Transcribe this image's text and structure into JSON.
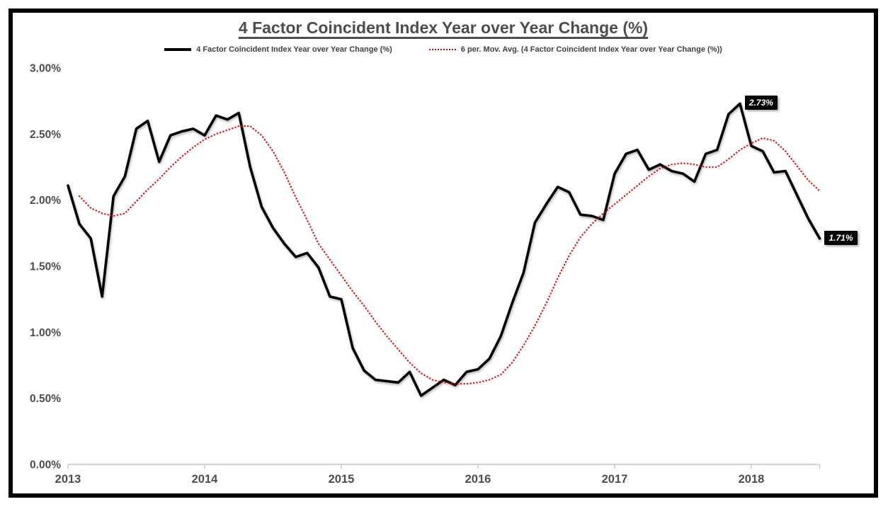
{
  "title": "4 Factor Coincident Index Year over Year Change (%)",
  "legend": {
    "items": [
      {
        "label": "4 Factor Coincident Index Year over Year Change (%)",
        "color": "#000000",
        "style": "solid"
      },
      {
        "label": "6 per. Mov. Avg. (4 Factor Coincident Index Year over Year Change (%))",
        "color": "#d20000",
        "style": "dotted"
      }
    ]
  },
  "point_labels": [
    {
      "text": "2.73%",
      "series": 0,
      "index": 59
    },
    {
      "text": "1.71%",
      "series": 0,
      "index": 66
    }
  ],
  "colors": {
    "annotation_bg": "#000000",
    "annotation_text": "#ffffff",
    "axis_line": "#c6c6c6",
    "axis_text": "#4d4d4d",
    "series1": "#000000",
    "series2": "#d20000"
  },
  "chart_data": {
    "type": "line",
    "title": "4 Factor Coincident Index Year over Year Change (%)",
    "x_start": "2013-01",
    "x_end": "2018-07",
    "x_interval": "monthly",
    "x_tick_labels": [
      "2013",
      "2014",
      "2015",
      "2016",
      "2017",
      "2018"
    ],
    "y_ticks": [
      {
        "label": "0.00%",
        "value": 0.0
      },
      {
        "label": "0.50%",
        "value": 0.5
      },
      {
        "label": "1.00%",
        "value": 1.0
      },
      {
        "label": "1.50%",
        "value": 1.5
      },
      {
        "label": "2.00%",
        "value": 2.0
      },
      {
        "label": "2.50%",
        "value": 2.5
      },
      {
        "label": "3.00%",
        "value": 3.0
      }
    ],
    "ylim": [
      0,
      3.0
    ],
    "grid": false,
    "legend_position": "top",
    "series": [
      {
        "name": "4 Factor Coincident Index Year over Year Change (%)",
        "color": "#000000",
        "style": "solid",
        "values": [
          2.11,
          1.82,
          1.71,
          1.27,
          2.03,
          2.18,
          2.54,
          2.6,
          2.29,
          2.49,
          2.52,
          2.54,
          2.49,
          2.64,
          2.61,
          2.66,
          2.25,
          1.95,
          1.79,
          1.67,
          1.57,
          1.6,
          1.49,
          1.27,
          1.25,
          0.88,
          0.71,
          0.64,
          0.63,
          0.62,
          0.7,
          0.52,
          0.58,
          0.64,
          0.6,
          0.7,
          0.72,
          0.8,
          0.97,
          1.22,
          1.45,
          1.83,
          1.97,
          2.1,
          2.06,
          1.89,
          1.88,
          1.85,
          2.2,
          2.35,
          2.38,
          2.23,
          2.27,
          2.22,
          2.2,
          2.14,
          2.35,
          2.38,
          2.65,
          2.73,
          2.41,
          2.37,
          2.21,
          2.22,
          2.04,
          1.86,
          1.71
        ]
      },
      {
        "name": "6 per. Mov. Avg. (4 Factor Coincident Index Year over Year Change (%))",
        "color": "#d20000",
        "style": "dotted",
        "values": [
          null,
          2.03,
          1.94,
          1.9,
          1.88,
          1.9,
          1.99,
          2.08,
          2.16,
          2.25,
          2.33,
          2.4,
          2.46,
          2.5,
          2.53,
          2.56,
          2.56,
          2.49,
          2.37,
          2.21,
          2.02,
          1.85,
          1.67,
          1.55,
          1.43,
          1.31,
          1.2,
          1.08,
          0.97,
          0.87,
          0.77,
          0.69,
          0.64,
          0.62,
          0.61,
          0.61,
          0.62,
          0.64,
          0.68,
          0.77,
          0.9,
          1.05,
          1.22,
          1.41,
          1.58,
          1.72,
          1.82,
          1.9,
          1.97,
          2.04,
          2.11,
          2.18,
          2.24,
          2.27,
          2.28,
          2.27,
          2.25,
          2.25,
          2.31,
          2.38,
          2.43,
          2.47,
          2.45,
          2.37,
          2.26,
          2.15,
          2.07
        ]
      }
    ]
  }
}
